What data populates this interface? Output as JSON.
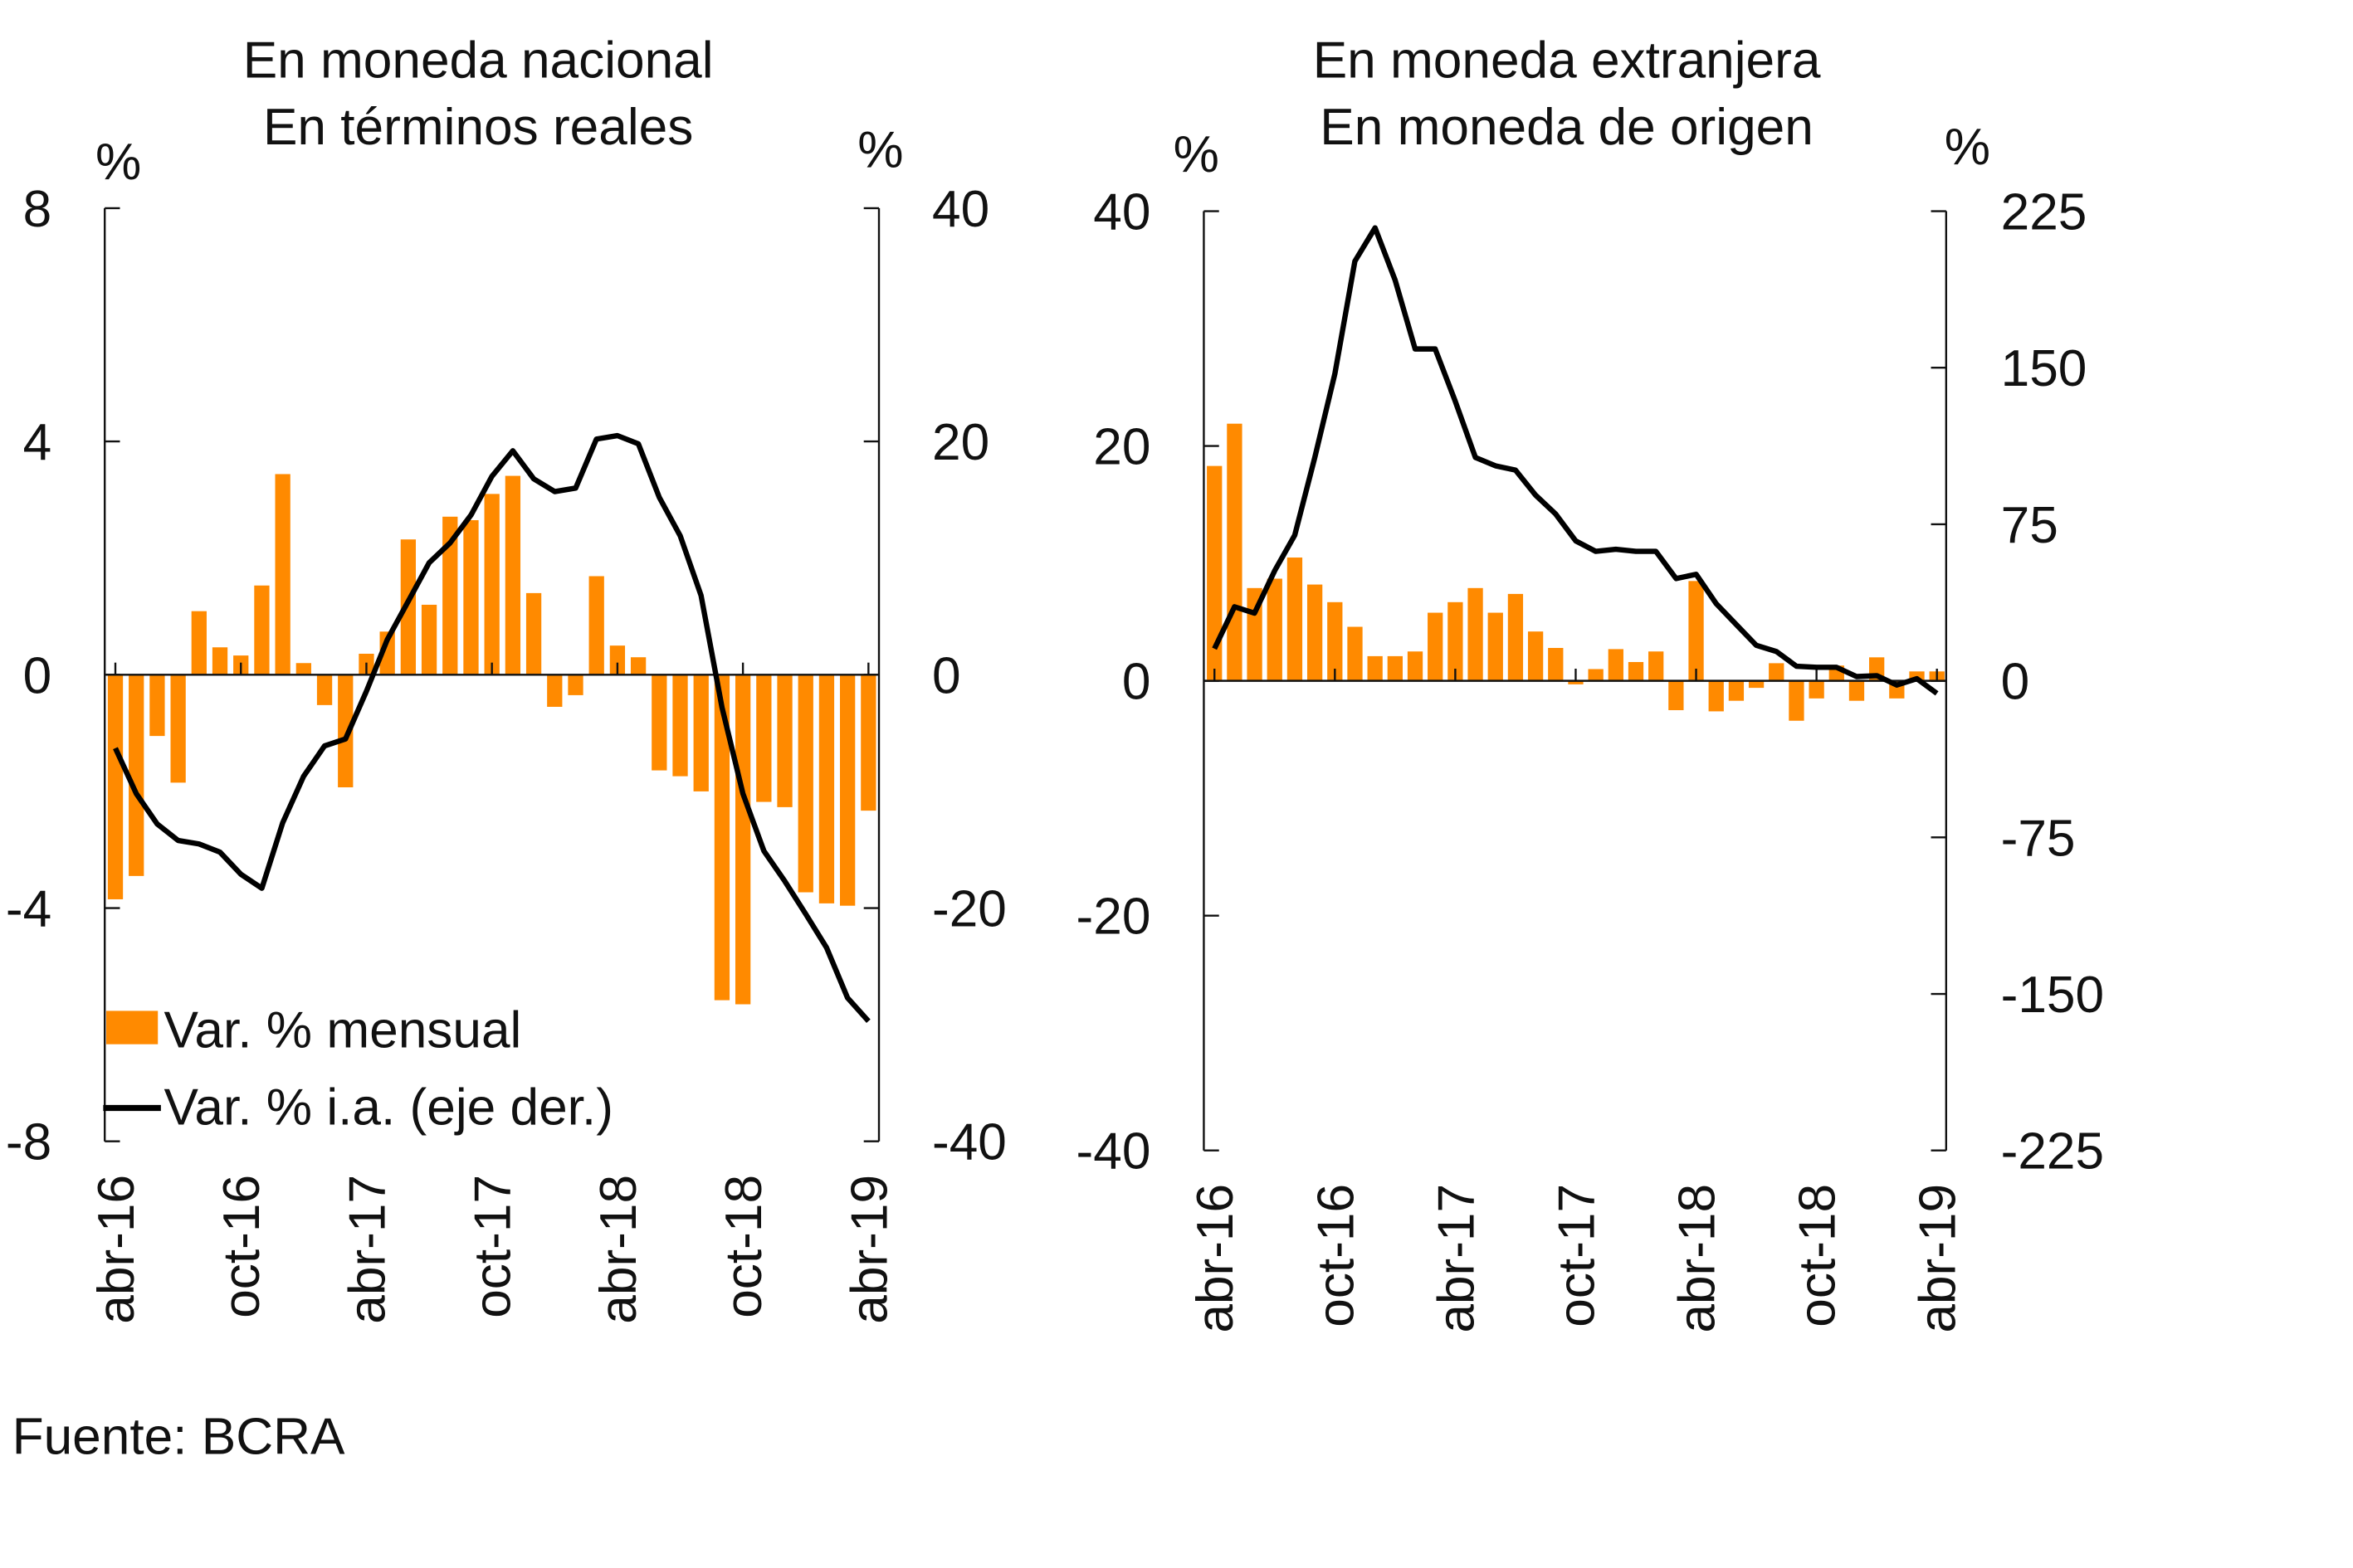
{
  "source": "Fuente: BCRA",
  "legend": {
    "bars": "Var. % mensual",
    "line": "Var. % i.a. (eje der.)"
  },
  "colors": {
    "bars": "#FF8A00",
    "line": "#000000"
  },
  "chart_data": [
    {
      "type": "bar+line",
      "title": [
        "En moneda nacional",
        "En términos reales"
      ],
      "ylabel_left": "%",
      "ylabel_right": "%",
      "ylim_left": [
        -8,
        8
      ],
      "yticks_left": [
        "8",
        "4",
        "0",
        "-4",
        "-8"
      ],
      "ylim_right": [
        -40,
        40
      ],
      "yticks_right": [
        "40",
        "20",
        "0",
        "-20",
        "-40"
      ],
      "xticks": [
        "abr-16",
        "oct-16",
        "abr-17",
        "oct-17",
        "abr-18",
        "oct-18",
        "abr-19"
      ],
      "x_months": "abr-16 .. abr-19 (37 monthly points)",
      "series": [
        {
          "name": "Var. % mensual",
          "axis": "left",
          "kind": "bar",
          "values": [
            -3.85,
            -3.45,
            -1.05,
            -1.85,
            1.09,
            0.47,
            0.33,
            1.53,
            3.44,
            0.2,
            -0.52,
            -1.93,
            0.36,
            0.74,
            2.32,
            1.2,
            2.71,
            2.65,
            3.1,
            3.41,
            1.4,
            -0.55,
            -0.35,
            1.69,
            0.5,
            0.3,
            -1.64,
            -1.74,
            -2.0,
            -5.58,
            -5.65,
            -2.18,
            -2.27,
            -3.73,
            -3.92,
            -3.96,
            -2.33
          ]
        },
        {
          "name": "Var. % i.a. (eje der.)",
          "axis": "right",
          "kind": "line",
          "values": [
            -6.3,
            -10.2,
            -12.8,
            -14.2,
            -14.5,
            -15.2,
            -17.1,
            -18.3,
            -12.7,
            -8.7,
            -6.1,
            -5.5,
            -1.4,
            3.0,
            6.3,
            9.6,
            11.3,
            13.7,
            17.0,
            19.2,
            16.8,
            15.7,
            16.0,
            20.2,
            20.5,
            19.8,
            15.2,
            11.9,
            6.8,
            -2.8,
            -10.2,
            -15.1,
            -17.7,
            -20.5,
            -23.4,
            -27.7,
            -29.7
          ]
        }
      ],
      "legend_position": "bottom-left"
    },
    {
      "type": "bar+line",
      "title": [
        "En moneda extranjera",
        "En moneda de origen"
      ],
      "ylabel_left": "%",
      "ylabel_right": "%",
      "ylim_left": [
        -40,
        40
      ],
      "yticks_left": [
        "40",
        "20",
        "0",
        "-20",
        "-40"
      ],
      "ylim_right": [
        -225,
        225
      ],
      "yticks_right": [
        "225",
        "150",
        "75",
        "0",
        "-75",
        "-150",
        "-225"
      ],
      "xticks": [
        "abr-16",
        "oct-16",
        "abr-17",
        "oct-17",
        "abr-18",
        "oct-18",
        "abr-19"
      ],
      "series": [
        {
          "name": "Var. % mensual",
          "axis": "left",
          "kind": "bar",
          "values": [
            18.3,
            21.9,
            7.9,
            8.7,
            10.5,
            8.2,
            6.7,
            4.6,
            2.1,
            2.1,
            2.5,
            5.8,
            6.7,
            7.9,
            5.8,
            7.4,
            4.2,
            2.8,
            -0.3,
            1.0,
            2.7,
            1.6,
            2.5,
            -2.5,
            8.5,
            -2.6,
            -1.7,
            -0.6,
            1.5,
            -3.4,
            -1.5,
            1.3,
            -1.7,
            2.0,
            -1.5,
            0.8,
            0.8
          ]
        },
        {
          "name": "Var. % i.a. (eje der.)",
          "axis": "right",
          "kind": "line",
          "values": [
            15.4,
            35.5,
            32.4,
            52.8,
            69.8,
            107,
            147,
            201,
            217,
            192,
            159,
            159,
            134,
            107,
            103,
            101,
            89,
            80,
            67,
            62,
            63,
            62,
            62,
            49,
            51,
            37,
            27,
            17,
            14,
            7,
            6.5,
            6.5,
            2,
            2.5,
            -2,
            1,
            -6
          ]
        }
      ]
    }
  ]
}
